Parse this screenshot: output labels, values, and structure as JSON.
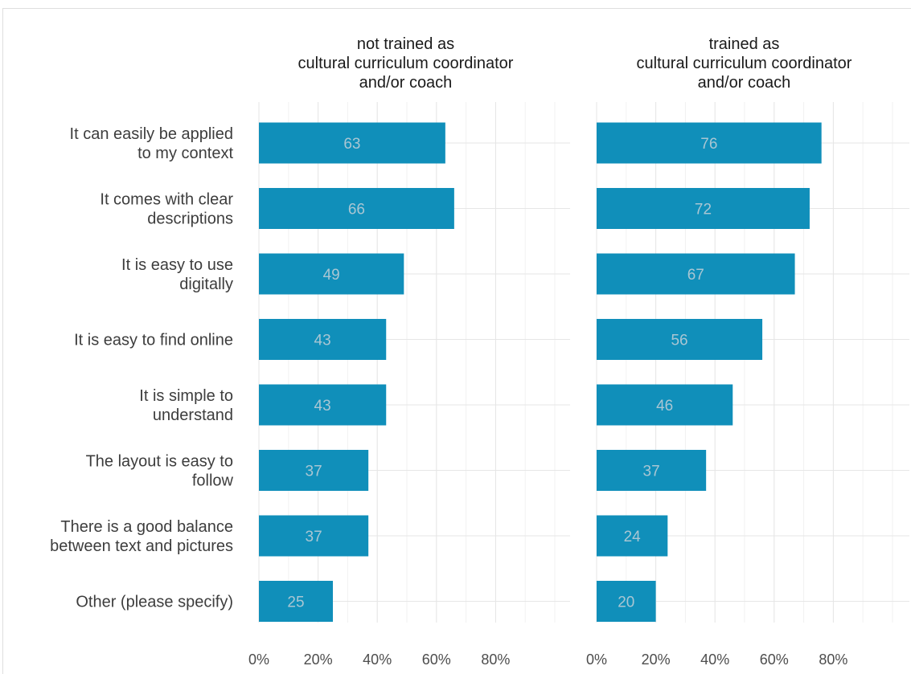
{
  "chart_data": {
    "type": "bar",
    "orientation": "horizontal",
    "categories": [
      "It can easily be applied\nto my context",
      "It comes with clear\ndescriptions",
      "It is easy to use\ndigitally",
      "It is easy to find online",
      "It is simple to\nunderstand",
      "The layout is easy to\nfollow",
      "There is a good balance\nbetween text and pictures",
      "Other (please specify)"
    ],
    "facets": [
      {
        "title": "not trained as\ncultural curriculum coordinator\nand/or coach",
        "values": [
          63,
          66,
          49,
          43,
          43,
          37,
          37,
          25
        ]
      },
      {
        "title": "trained as\ncultural curriculum coordinator\nand/or coach",
        "values": [
          76,
          72,
          67,
          56,
          46,
          37,
          24,
          20
        ]
      }
    ],
    "x_ticks": [
      "0%",
      "20%",
      "40%",
      "60%",
      "80%"
    ],
    "x_tick_values": [
      0,
      20,
      40,
      60,
      80
    ],
    "xlim": [
      0,
      100
    ],
    "grid": true,
    "legend": "none",
    "bar_color": "#108fba",
    "label_color": "#a9c6d3"
  }
}
